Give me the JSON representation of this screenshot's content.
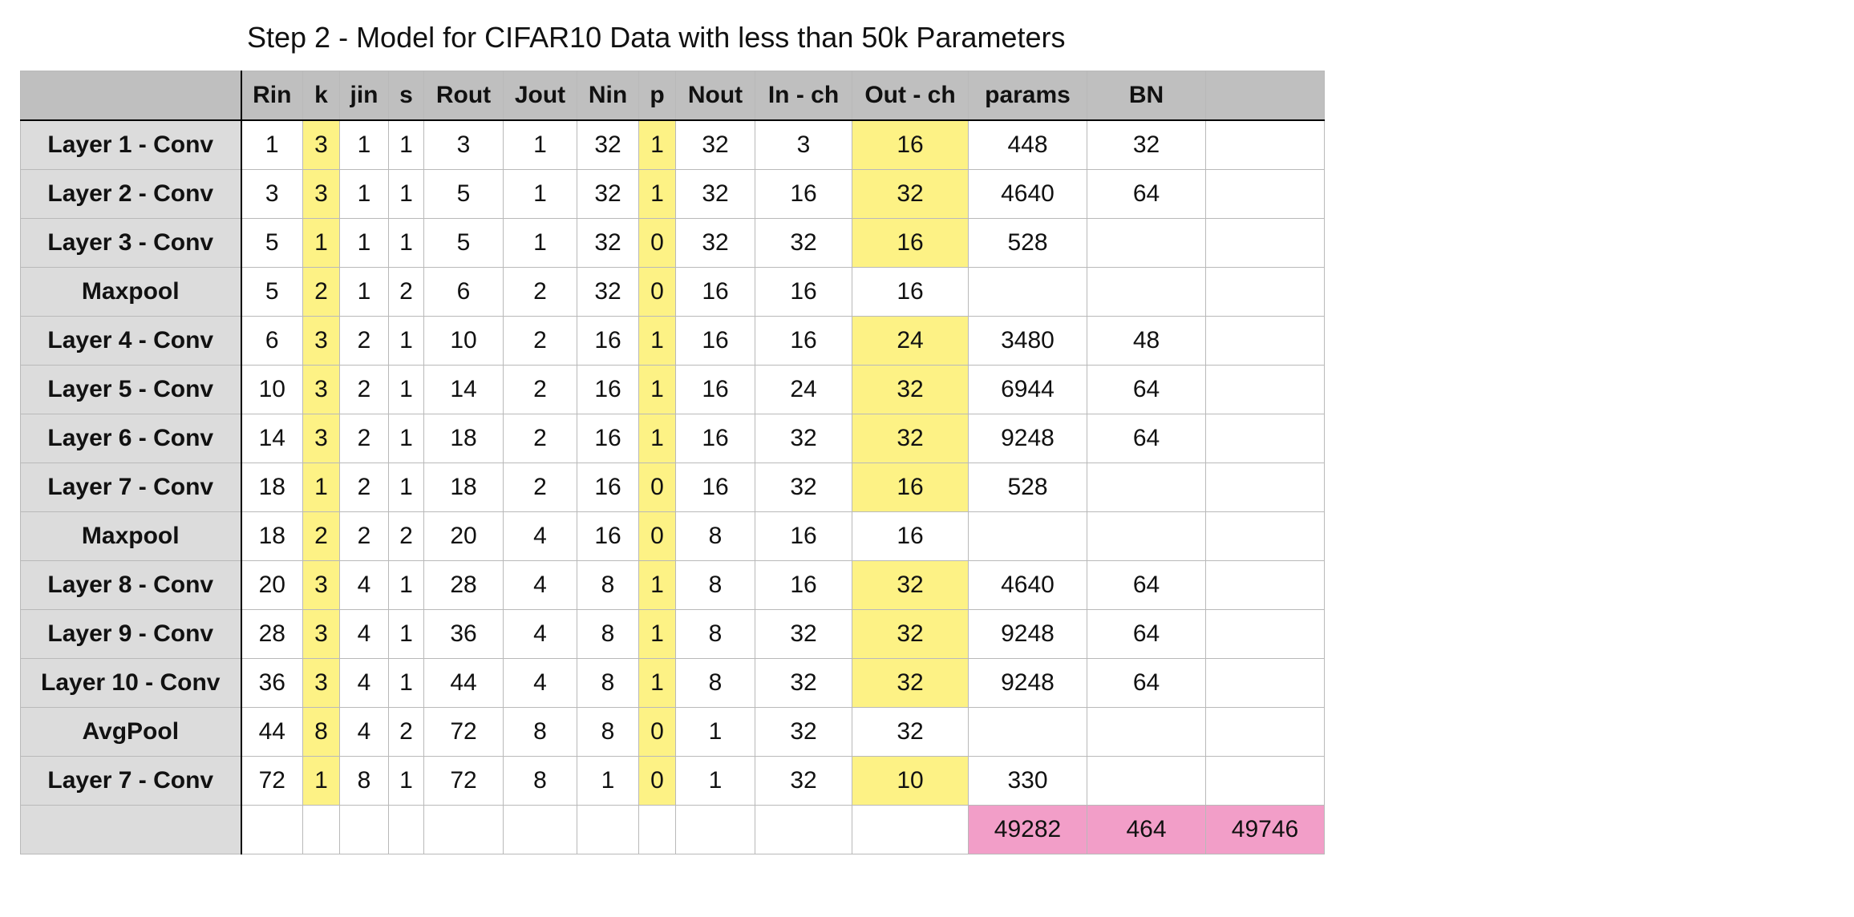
{
  "title": "Step 2 - Model for CIFAR10 Data with less than 50k Parameters",
  "colors": {
    "header_bg": "#bfbfbf",
    "row_header_bg": "#dcdcdc",
    "highlight_yellow": "#fdf285",
    "highlight_pink": "#f29ec8"
  },
  "table": {
    "headers": [
      "",
      "Rin",
      "k",
      "jin",
      "s",
      "Rout",
      "Jout",
      "Nin",
      "p",
      "Nout",
      "In - ch",
      "Out - ch",
      "params",
      "BN",
      ""
    ],
    "rows": [
      {
        "label": "Layer 1  - Conv",
        "cells": [
          "1",
          "3",
          "1",
          "1",
          "3",
          "1",
          "32",
          "1",
          "32",
          "3",
          "16",
          "448",
          "32",
          ""
        ]
      },
      {
        "label": "Layer 2 - Conv",
        "cells": [
          "3",
          "3",
          "1",
          "1",
          "5",
          "1",
          "32",
          "1",
          "32",
          "16",
          "32",
          "4640",
          "64",
          ""
        ]
      },
      {
        "label": "Layer 3 - Conv",
        "cells": [
          "5",
          "1",
          "1",
          "1",
          "5",
          "1",
          "32",
          "0",
          "32",
          "32",
          "16",
          "528",
          "",
          ""
        ]
      },
      {
        "label": "Maxpool",
        "cells": [
          "5",
          "2",
          "1",
          "2",
          "6",
          "2",
          "32",
          "0",
          "16",
          "16",
          "16",
          "",
          "",
          ""
        ]
      },
      {
        "label": "Layer 4 - Conv",
        "cells": [
          "6",
          "3",
          "2",
          "1",
          "10",
          "2",
          "16",
          "1",
          "16",
          "16",
          "24",
          "3480",
          "48",
          ""
        ]
      },
      {
        "label": "Layer 5 - Conv",
        "cells": [
          "10",
          "3",
          "2",
          "1",
          "14",
          "2",
          "16",
          "1",
          "16",
          "24",
          "32",
          "6944",
          "64",
          ""
        ]
      },
      {
        "label": "Layer 6 - Conv",
        "cells": [
          "14",
          "3",
          "2",
          "1",
          "18",
          "2",
          "16",
          "1",
          "16",
          "32",
          "32",
          "9248",
          "64",
          ""
        ]
      },
      {
        "label": "Layer 7 - Conv",
        "cells": [
          "18",
          "1",
          "2",
          "1",
          "18",
          "2",
          "16",
          "0",
          "16",
          "32",
          "16",
          "528",
          "",
          ""
        ]
      },
      {
        "label": "Maxpool",
        "cells": [
          "18",
          "2",
          "2",
          "2",
          "20",
          "4",
          "16",
          "0",
          "8",
          "16",
          "16",
          "",
          "",
          ""
        ]
      },
      {
        "label": "Layer 8 - Conv",
        "cells": [
          "20",
          "3",
          "4",
          "1",
          "28",
          "4",
          "8",
          "1",
          "8",
          "16",
          "32",
          "4640",
          "64",
          ""
        ]
      },
      {
        "label": "Layer 9 - Conv",
        "cells": [
          "28",
          "3",
          "4",
          "1",
          "36",
          "4",
          "8",
          "1",
          "8",
          "32",
          "32",
          "9248",
          "64",
          ""
        ]
      },
      {
        "label": "Layer 10 - Conv",
        "cells": [
          "36",
          "3",
          "4",
          "1",
          "44",
          "4",
          "8",
          "1",
          "8",
          "32",
          "32",
          "9248",
          "64",
          ""
        ]
      },
      {
        "label": "AvgPool",
        "cells": [
          "44",
          "8",
          "4",
          "2",
          "72",
          "8",
          "8",
          "0",
          "1",
          "32",
          "32",
          "",
          "",
          ""
        ]
      },
      {
        "label": "Layer 7 - Conv",
        "cells": [
          "72",
          "1",
          "8",
          "1",
          "72",
          "8",
          "1",
          "0",
          "1",
          "32",
          "10",
          "330",
          "",
          ""
        ]
      }
    ],
    "totals": {
      "label": "",
      "cells": [
        "",
        "",
        "",
        "",
        "",
        "",
        "",
        "",
        "",
        "",
        "",
        "49282",
        "464",
        "49746"
      ]
    }
  }
}
